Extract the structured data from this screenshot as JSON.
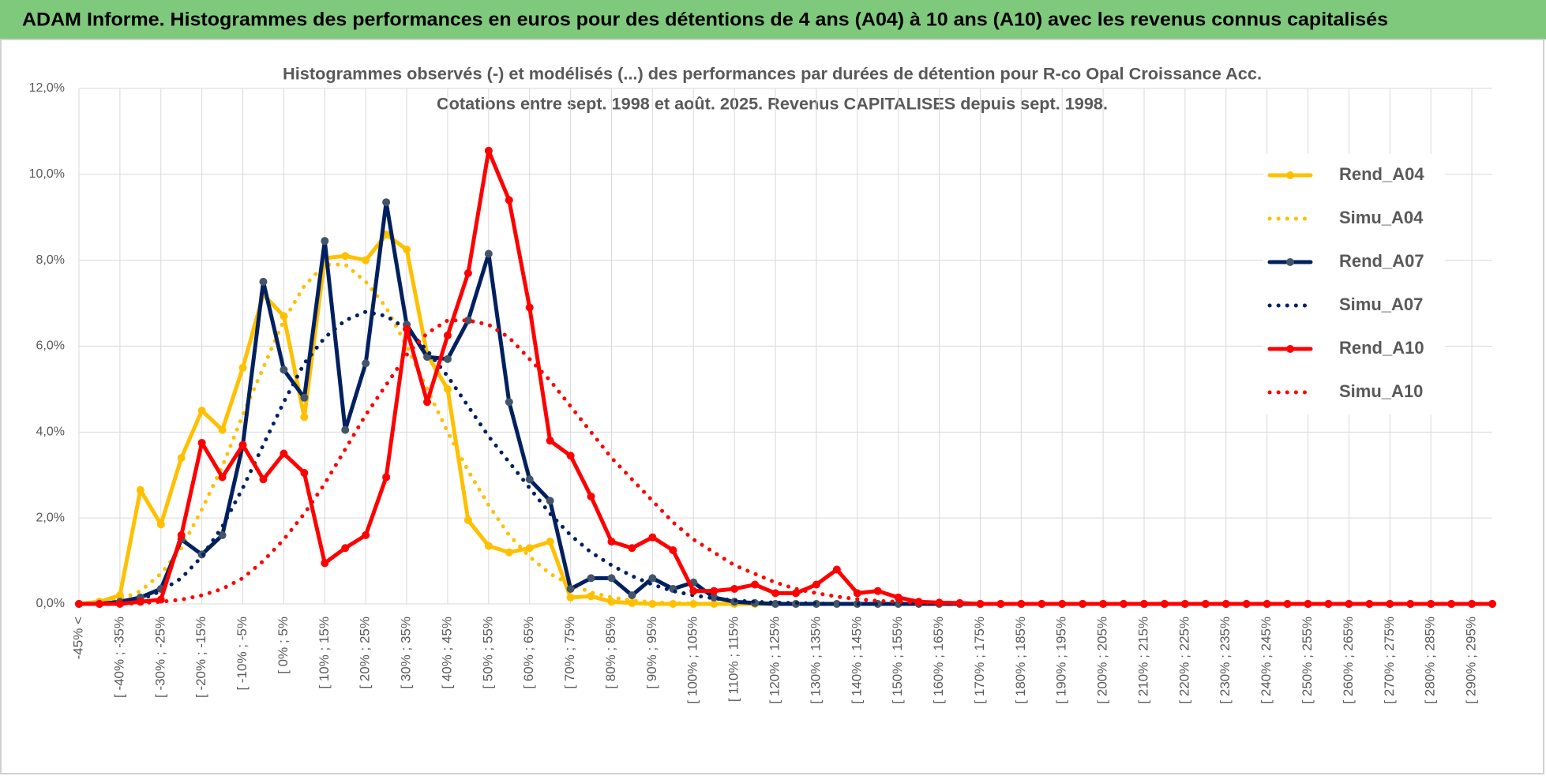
{
  "header": {
    "title": "ADAM Informe. Histogrammes des performances en euros pour des détentions de 4 ans (A04) à 10 ans (A10) avec les revenus connus capitalisés"
  },
  "chart_data": {
    "type": "line",
    "title": "Histogrammes observés (-) et modélisés (...) des performances par durées de détention pour R-co Opal Croissance Acc.",
    "subtitle": "Cotations entre sept. 1998 et août. 2025. Revenus CAPITALISES depuis sept. 1998.",
    "categories": [
      "-45% <",
      null,
      "[ -40% ; -35%",
      null,
      "[ -30% ; -25%",
      null,
      "[ -20% ; -15%",
      null,
      "[ -10% ; -5%",
      null,
      "[ 0% ; 5%",
      null,
      "[ 10% ; 15%",
      null,
      "[ 20% ; 25%",
      null,
      "[ 30% ; 35%",
      null,
      "[ 40% ; 45%",
      null,
      "[ 50% ; 55%",
      null,
      "[ 60% ; 65%",
      null,
      "[ 70% ; 75%",
      null,
      "[ 80% ; 85%",
      null,
      "[ 90% ; 95%",
      null,
      "[ 100% ; 105%",
      null,
      "[ 110% ; 115%",
      null,
      "[ 120% ; 125%",
      null,
      "[ 130% ; 135%",
      null,
      "[ 140% ; 145%",
      null,
      "[ 150% ; 155%",
      null,
      "[ 160% ; 165%",
      null,
      "[ 170% ; 175%",
      null,
      "[ 180% ; 185%",
      null,
      "[ 190% ; 195%",
      null,
      "[ 200% ; 205%",
      null,
      "[ 210% ; 215%",
      null,
      "[ 220% ; 225%",
      null,
      "[ 230% ; 235%",
      null,
      "[ 240% ; 245%",
      null,
      "[ 250% ; 255%",
      null,
      "[ 260% ; 265%",
      null,
      "[ 270% ; 275%",
      null,
      "[ 280% ; 285%",
      null,
      "[ 290% ; 295%",
      null
    ],
    "series": [
      {
        "name": "Rend_A04",
        "color": "#ffc000",
        "style": "solid",
        "markers": true,
        "values": [
          0,
          0.05,
          0.2,
          2.65,
          1.85,
          3.4,
          4.5,
          4.05,
          5.5,
          7.2,
          6.7,
          4.35,
          8.05,
          8.1,
          8.0,
          8.6,
          8.25,
          5.8,
          5.0,
          1.95,
          1.35,
          1.2,
          1.3,
          1.45,
          0.15,
          0.18,
          0.05,
          0.02,
          0,
          0,
          0,
          0,
          0,
          0,
          0,
          0,
          0,
          0,
          0,
          0,
          0,
          0,
          0,
          0,
          0,
          0,
          0,
          0,
          0,
          0,
          0,
          0,
          0,
          0,
          0,
          0,
          0,
          0,
          0,
          0,
          0,
          0,
          0,
          0,
          0,
          0,
          0,
          0,
          0,
          0
        ]
      },
      {
        "name": "Simu_A04",
        "color": "#ffc000",
        "style": "dotted",
        "markers": false,
        "values": [
          0,
          0.03,
          0.1,
          0.3,
          0.7,
          1.3,
          2.2,
          3.2,
          4.4,
          5.5,
          6.6,
          7.4,
          7.9,
          7.9,
          7.5,
          6.9,
          6.0,
          5.0,
          4.0,
          3.1,
          2.3,
          1.6,
          1.1,
          0.7,
          0.45,
          0.27,
          0.15,
          0.08,
          0.04,
          0.02,
          0.01,
          0,
          0,
          0,
          0,
          0,
          0,
          0,
          0,
          0,
          0,
          0,
          0,
          0,
          0,
          0,
          0,
          0,
          0,
          0,
          0,
          0,
          0,
          0,
          0,
          0,
          0,
          0,
          0,
          0,
          0,
          0,
          0,
          0,
          0,
          0,
          0,
          0,
          0,
          0
        ]
      },
      {
        "name": "Rend_A07",
        "color": "#002060",
        "marker_color": "#44546a",
        "style": "solid",
        "markers": true,
        "values": [
          0,
          0,
          0.05,
          0.15,
          0.35,
          1.5,
          1.15,
          1.6,
          3.7,
          7.5,
          5.45,
          4.8,
          8.45,
          4.05,
          5.6,
          9.35,
          6.5,
          5.75,
          5.7,
          6.6,
          8.15,
          4.7,
          2.9,
          2.4,
          0.35,
          0.6,
          0.6,
          0.2,
          0.6,
          0.35,
          0.5,
          0.15,
          0.05,
          0.02,
          0,
          0,
          0,
          0,
          0,
          0,
          0,
          0,
          0,
          0,
          0,
          0,
          0,
          0,
          0,
          0,
          0,
          0,
          0,
          0,
          0,
          0,
          0,
          0,
          0,
          0,
          0,
          0,
          0,
          0,
          0,
          0,
          0,
          0,
          0,
          0
        ]
      },
      {
        "name": "Simu_A07",
        "color": "#002060",
        "style": "dotted",
        "markers": false,
        "values": [
          0,
          0.01,
          0.03,
          0.1,
          0.3,
          0.6,
          1.1,
          1.8,
          2.7,
          3.7,
          4.7,
          5.6,
          6.2,
          6.6,
          6.8,
          6.7,
          6.4,
          5.9,
          5.3,
          4.6,
          3.9,
          3.3,
          2.7,
          2.1,
          1.6,
          1.2,
          0.9,
          0.65,
          0.45,
          0.3,
          0.2,
          0.13,
          0.08,
          0.05,
          0.03,
          0.02,
          0.01,
          0,
          0,
          0,
          0,
          0,
          0,
          0,
          0,
          0,
          0,
          0,
          0,
          0,
          0,
          0,
          0,
          0,
          0,
          0,
          0,
          0,
          0,
          0,
          0,
          0,
          0,
          0,
          0,
          0,
          0,
          0,
          0,
          0
        ]
      },
      {
        "name": "Rend_A10",
        "color": "#ff0000",
        "style": "solid",
        "markers": true,
        "values": [
          0,
          0,
          0,
          0.05,
          0.1,
          1.6,
          3.75,
          2.95,
          3.7,
          2.9,
          3.5,
          3.05,
          0.95,
          1.3,
          1.6,
          2.95,
          6.4,
          4.7,
          6.25,
          7.7,
          10.55,
          9.4,
          6.9,
          3.8,
          3.45,
          2.5,
          1.45,
          1.3,
          1.55,
          1.25,
          0.3,
          0.3,
          0.35,
          0.45,
          0.25,
          0.25,
          0.45,
          0.8,
          0.25,
          0.3,
          0.15,
          0.05,
          0.03,
          0.02,
          0,
          0,
          0,
          0,
          0,
          0,
          0,
          0,
          0,
          0,
          0,
          0,
          0,
          0,
          0,
          0,
          0,
          0,
          0,
          0,
          0,
          0,
          0,
          0,
          0,
          0
        ]
      },
      {
        "name": "Simu_A10",
        "color": "#ff0000",
        "style": "dotted",
        "markers": false,
        "values": [
          0,
          0,
          0,
          0.02,
          0.05,
          0.1,
          0.2,
          0.35,
          0.6,
          1.0,
          1.5,
          2.1,
          2.8,
          3.6,
          4.4,
          5.1,
          5.8,
          6.3,
          6.6,
          6.6,
          6.5,
          6.2,
          5.7,
          5.2,
          4.6,
          4.0,
          3.4,
          2.9,
          2.4,
          1.9,
          1.5,
          1.2,
          0.9,
          0.7,
          0.5,
          0.35,
          0.25,
          0.17,
          0.11,
          0.07,
          0.05,
          0.03,
          0.02,
          0.01,
          0,
          0,
          0,
          0,
          0,
          0,
          0,
          0,
          0,
          0,
          0,
          0,
          0,
          0,
          0,
          0,
          0,
          0,
          0,
          0,
          0,
          0,
          0,
          0,
          0,
          0
        ]
      }
    ],
    "ylim": [
      0,
      12
    ],
    "yticks": [
      {
        "value": 0,
        "label": "0,0%"
      },
      {
        "value": 2,
        "label": "2,0%"
      },
      {
        "value": 4,
        "label": "4,0%"
      },
      {
        "value": 6,
        "label": "6,0%"
      },
      {
        "value": 8,
        "label": "8,0%"
      },
      {
        "value": 10,
        "label": "10,0%"
      },
      {
        "value": 12,
        "label": "12,0%"
      }
    ],
    "grid": true,
    "legend": "right"
  }
}
